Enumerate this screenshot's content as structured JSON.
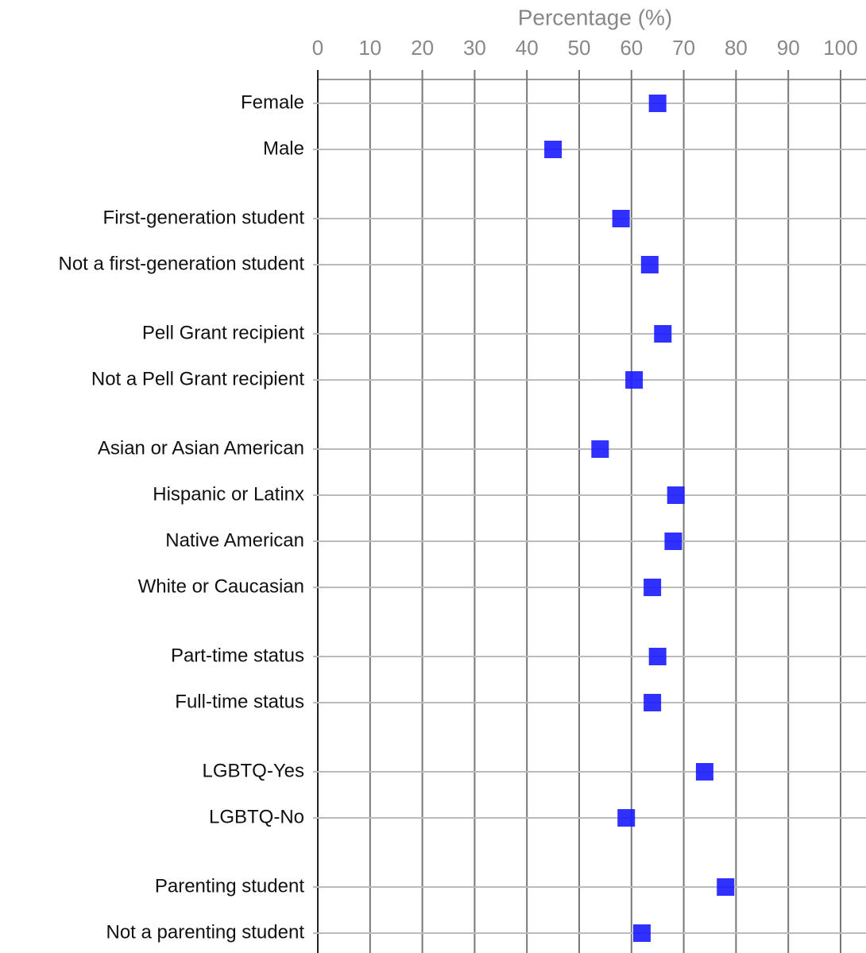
{
  "chart_data": {
    "type": "dot",
    "title": "Percentage (%)",
    "xlim": [
      0,
      100
    ],
    "xticks": [
      0,
      10,
      20,
      30,
      40,
      50,
      60,
      70,
      80,
      90,
      100
    ],
    "grid": true,
    "color": "#1a1aff",
    "groups": [
      {
        "categories": [
          "Female",
          "Male"
        ],
        "values": [
          65,
          45
        ]
      },
      {
        "categories": [
          "First-generation student",
          "Not a first-generation student"
        ],
        "values": [
          58,
          63.5
        ]
      },
      {
        "categories": [
          "Pell Grant recipient",
          "Not a Pell Grant recipient"
        ],
        "values": [
          66,
          60.5
        ]
      },
      {
        "categories": [
          "Asian or Asian American",
          "Hispanic or Latinx",
          "Native American",
          "White or Caucasian"
        ],
        "values": [
          54,
          68.5,
          68,
          64
        ]
      },
      {
        "categories": [
          "Part-time status",
          "Full-time status"
        ],
        "values": [
          65,
          64
        ]
      },
      {
        "categories": [
          "LGBTQ-Yes",
          "LGBTQ-No"
        ],
        "values": [
          74,
          59
        ]
      },
      {
        "categories": [
          "Parenting student",
          "Not a parenting student"
        ],
        "values": [
          78,
          62
        ]
      }
    ]
  }
}
